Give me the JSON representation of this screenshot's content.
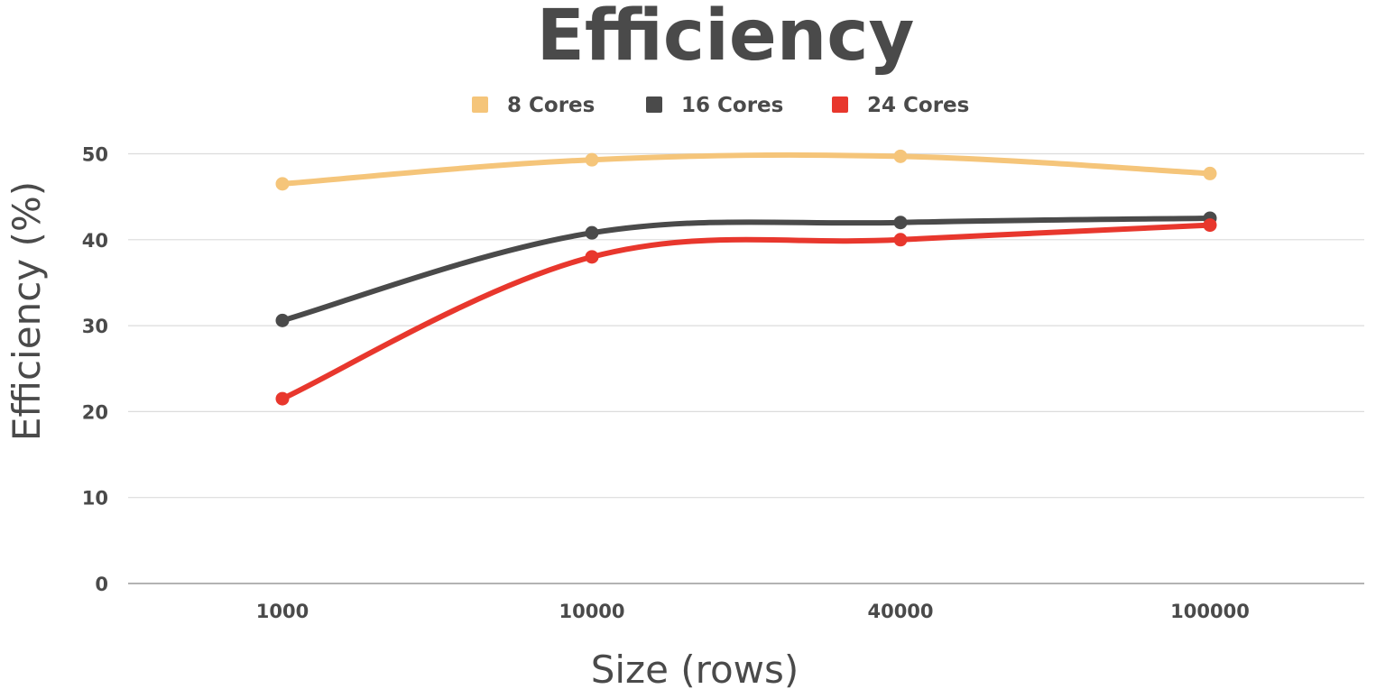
{
  "chart_data": {
    "type": "line",
    "title": "Efficiency",
    "xlabel": "Size (rows)",
    "ylabel": "Efficiency (%)",
    "categories": [
      "1000",
      "10000",
      "40000",
      "100000"
    ],
    "ylim": [
      0,
      55
    ],
    "yticks": [
      0,
      10,
      20,
      30,
      40,
      50
    ],
    "grid": true,
    "legend_position": "top",
    "smooth": true,
    "series": [
      {
        "name": "8 Cores",
        "color": "#f5c57a",
        "values": [
          46.5,
          49.3,
          49.7,
          47.7
        ]
      },
      {
        "name": "16 Cores",
        "color": "#4a4a4a",
        "values": [
          30.6,
          40.8,
          42.0,
          42.5
        ]
      },
      {
        "name": "24 Cores",
        "color": "#e8372d",
        "values": [
          21.5,
          38.0,
          40.0,
          41.7
        ]
      }
    ]
  }
}
